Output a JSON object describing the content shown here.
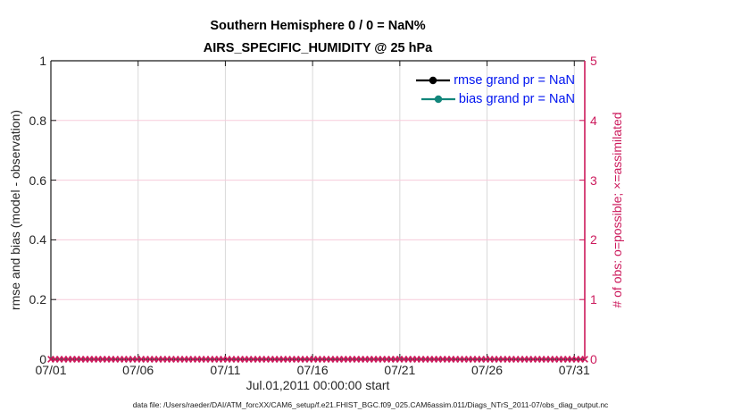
{
  "title": {
    "line1": "Southern Hemisphere 0 / 0 = NaN%",
    "line2": "AIRS_SPECIFIC_HUMIDITY @ 25 hPa"
  },
  "left_axis": {
    "label": "rmse and bias (model - observation)",
    "tick_labels": [
      "0",
      "0.2",
      "0.4",
      "0.6",
      "0.8",
      "1"
    ],
    "min": 0,
    "max": 1
  },
  "right_axis": {
    "label": "# of obs: o=possible; ×=assimilated",
    "tick_labels": [
      "0",
      "1",
      "2",
      "3",
      "4",
      "5"
    ],
    "min": 0,
    "max": 5
  },
  "x_axis": {
    "label": "Jul.01,2011 00:00:00 start",
    "tick_labels": [
      "07/01",
      "07/06",
      "07/11",
      "07/16",
      "07/21",
      "07/26",
      "07/31"
    ],
    "tick_days": [
      0,
      5,
      10,
      15,
      20,
      25,
      30
    ],
    "axis_span_days": 30.6
  },
  "legend": {
    "items": [
      {
        "label": "rmse grand pr = NaN",
        "color": "#000000",
        "marker": "circle"
      },
      {
        "label": "bias grand pr = NaN",
        "color": "#12867B",
        "marker": "circle"
      }
    ]
  },
  "footer": {
    "text": "data file: /Users/raeder/DAI/ATM_forcXX/CAM6_setup/f.e21.FHIST_BGC.f09_025.CAM6assim.011/Diags_NTrS_2011-07/obs_diag_output.nc"
  },
  "colors": {
    "crimson": "#CC1A5C",
    "teal": "#12867B",
    "legend_text": "#0014F0",
    "grid_pink": "#F7CCDC",
    "grid_gray": "#D9D9D9",
    "axis_black": "#1a1a1a",
    "tick_text": "#262626"
  },
  "chart_data": {
    "type": "line",
    "title": "Southern Hemisphere 0 / 0 = NaN% — AIRS_SPECIFIC_HUMIDITY @ 25 hPa",
    "xlabel": "Jul.01,2011 00:00:00 start",
    "ylabel_left": "rmse and bias (model - observation)",
    "ylabel_right": "# of obs: o=possible; ×=assimilated",
    "x_tick_labels": [
      "07/01",
      "07/06",
      "07/11",
      "07/16",
      "07/21",
      "07/26",
      "07/31"
    ],
    "left_ylim": [
      0,
      1
    ],
    "right_ylim": [
      0,
      5
    ],
    "grid": {
      "visible": true,
      "horizontal_color": "light pink",
      "vertical_color": "light gray"
    },
    "legend_position": "top-right inside, no box",
    "series": [
      {
        "name": "rmse grand pr",
        "axis": "left",
        "values": "NaN",
        "plotted_points": 0,
        "line_color": "#000000"
      },
      {
        "name": "bias grand pr",
        "axis": "left",
        "values": "NaN",
        "plotted_points": 0,
        "line_color": "#12867B"
      },
      {
        "name": "assimilated observations (× markers)",
        "axis": "right",
        "constant_value": 0,
        "x_extent": [
          "07/01",
          "07/31"
        ],
        "marker": "x",
        "marker_color": "#CC1A5C",
        "marker_count_estimate": 125
      }
    ]
  }
}
